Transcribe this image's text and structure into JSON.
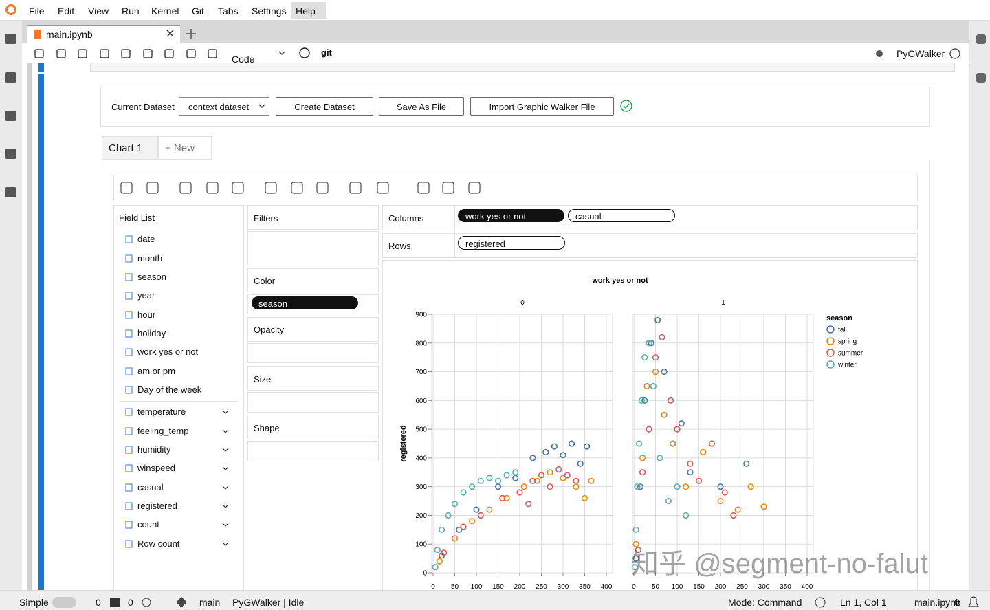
{
  "menu": [
    "File",
    "Edit",
    "View",
    "Run",
    "Kernel",
    "Git",
    "Tabs",
    "Settings",
    "Help"
  ],
  "tab": {
    "title": "main.ipynb"
  },
  "toolbar": {
    "cell_type": "Code",
    "git": "git",
    "kernel": "PyGWalker"
  },
  "dataset_bar": {
    "label": "Current Dataset",
    "dataset": "context dataset",
    "buttons": [
      "Create Dataset",
      "Save As File",
      "Import Graphic Walker File"
    ]
  },
  "chart_tabs": [
    "Chart 1",
    "+ New"
  ],
  "field_list": {
    "title": "Field List",
    "dimensions": [
      "date",
      "month",
      "season",
      "year",
      "hour",
      "holiday",
      "work yes or not",
      "am or pm",
      "Day of the week"
    ],
    "measures": [
      "temperature",
      "feeling_temp",
      "humidity",
      "winspeed",
      "casual",
      "registered",
      "count",
      "Row count"
    ]
  },
  "encodings": {
    "filters": "Filters",
    "color": {
      "label": "Color",
      "field": "season"
    },
    "opacity": "Opacity",
    "size": "Size",
    "shape": "Shape",
    "columns": {
      "label": "Columns",
      "fields": [
        "work yes or not",
        "casual"
      ]
    },
    "rows": {
      "label": "Rows",
      "fields": [
        "registered"
      ]
    }
  },
  "chart_data": {
    "type": "scatter",
    "title": "work yes or not",
    "y_label": "registered",
    "xlim": [
      0,
      400
    ],
    "xticks": [
      0,
      50,
      100,
      150,
      200,
      250,
      300,
      350,
      400
    ],
    "ylim": [
      0,
      900
    ],
    "yticks": [
      0,
      100,
      200,
      300,
      400,
      500,
      600,
      700,
      800,
      900
    ],
    "grid": true,
    "legend": {
      "title": "season",
      "position": "right"
    },
    "series": [
      {
        "name": "fall",
        "color": "#4c78a8"
      },
      {
        "name": "spring",
        "color": "#f58518"
      },
      {
        "name": "summer",
        "color": "#e45756"
      },
      {
        "name": "winter",
        "color": "#54b3ad"
      }
    ],
    "facets": [
      {
        "label": "0",
        "points": [
          {
            "x": [
              20,
              60,
              100,
              150,
              190,
              230,
              260,
              280,
              300,
              320,
              340,
              355
            ],
            "y": [
              60,
              150,
              220,
              300,
              330,
              400,
              420,
              440,
              410,
              450,
              380,
              440
            ]
          },
          {
            "x": [
              15,
              50,
              90,
              130,
              170,
              210,
              240,
              270,
              300,
              330,
              350,
              365
            ],
            "y": [
              40,
              120,
              180,
              220,
              260,
              300,
              320,
              350,
              330,
              300,
              260,
              320
            ]
          },
          {
            "x": [
              25,
              70,
              110,
              160,
              200,
              230,
              250,
              290,
              310,
              330,
              270,
              220
            ],
            "y": [
              70,
              160,
              200,
              260,
              280,
              320,
              340,
              360,
              340,
              320,
              300,
              240
            ]
          },
          {
            "x": [
              5,
              10,
              20,
              35,
              50,
              70,
              90,
              110,
              130,
              150,
              170,
              190
            ],
            "y": [
              20,
              80,
              150,
              200,
              240,
              280,
              300,
              320,
              330,
              320,
              340,
              350
            ]
          }
        ]
      },
      {
        "label": "1",
        "points": [
          {
            "x": [
              5,
              15,
              25,
              40,
              55,
              70,
              90,
              110,
              130,
              160,
              200,
              260
            ],
            "y": [
              50,
              300,
              600,
              800,
              880,
              700,
              450,
              520,
              350,
              420,
              300,
              380
            ]
          },
          {
            "x": [
              5,
              20,
              30,
              50,
              70,
              90,
              120,
              160,
              200,
              240,
              270,
              300
            ],
            "y": [
              100,
              400,
              650,
              700,
              550,
              450,
              300,
              420,
              250,
              220,
              300,
              230
            ]
          },
          {
            "x": [
              10,
              20,
              35,
              50,
              65,
              85,
              100,
              130,
              150,
              180,
              210,
              230
            ],
            "y": [
              80,
              350,
              500,
              750,
              820,
              600,
              500,
              380,
              320,
              450,
              280,
              200
            ]
          },
          {
            "x": [
              2,
              5,
              8,
              12,
              18,
              25,
              35,
              45,
              60,
              80,
              100,
              120
            ],
            "y": [
              20,
              150,
              300,
              450,
              600,
              750,
              800,
              650,
              400,
              250,
              300,
              200
            ]
          }
        ]
      }
    ]
  },
  "watermark": "知乎 @segment-no-falut",
  "status_bar": {
    "mode": "Simple",
    "terminals": 0,
    "kernels": 0,
    "branch": "main",
    "kernel_status": "PyGWalker | Idle",
    "command_mode": "Mode: Command",
    "cursor": "Ln 1, Col 1",
    "file": "main.ipynb",
    "notifications": 0
  }
}
